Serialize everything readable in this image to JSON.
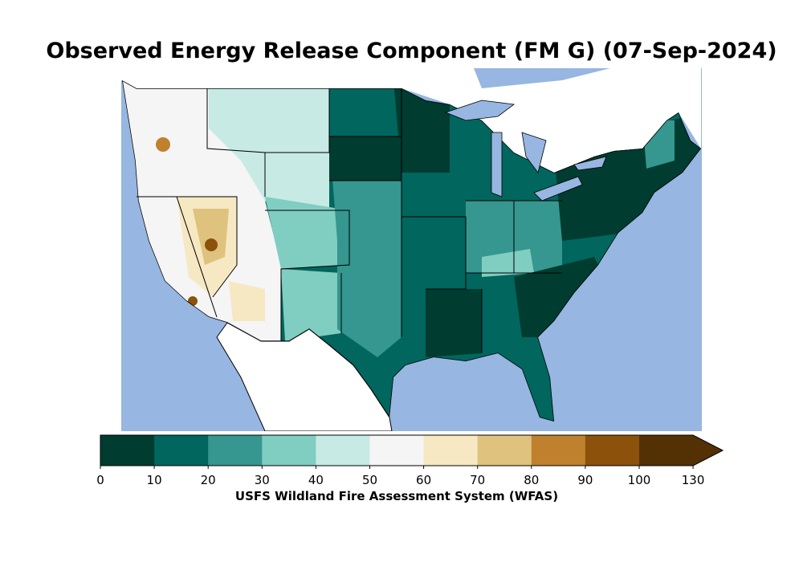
{
  "title": "Observed Energy Release Component (FM G) (07-Sep-2024)",
  "colorbar": {
    "ticks": [
      "0",
      "10",
      "20",
      "30",
      "40",
      "50",
      "60",
      "70",
      "80",
      "90",
      "100",
      "130"
    ],
    "colors": [
      "#003c30",
      "#01665e",
      "#35978f",
      "#80cdc1",
      "#c7eae5",
      "#f5f5f5",
      "#f6e8c3",
      "#dfc27d",
      "#bf812d",
      "#8c510a",
      "#543005"
    ],
    "extend": "max",
    "caption": "USFS Wildland Fire Assessment System (WFAS)"
  },
  "map": {
    "ocean_color": "#97b6e1",
    "land_color": "#ffffff"
  }
}
